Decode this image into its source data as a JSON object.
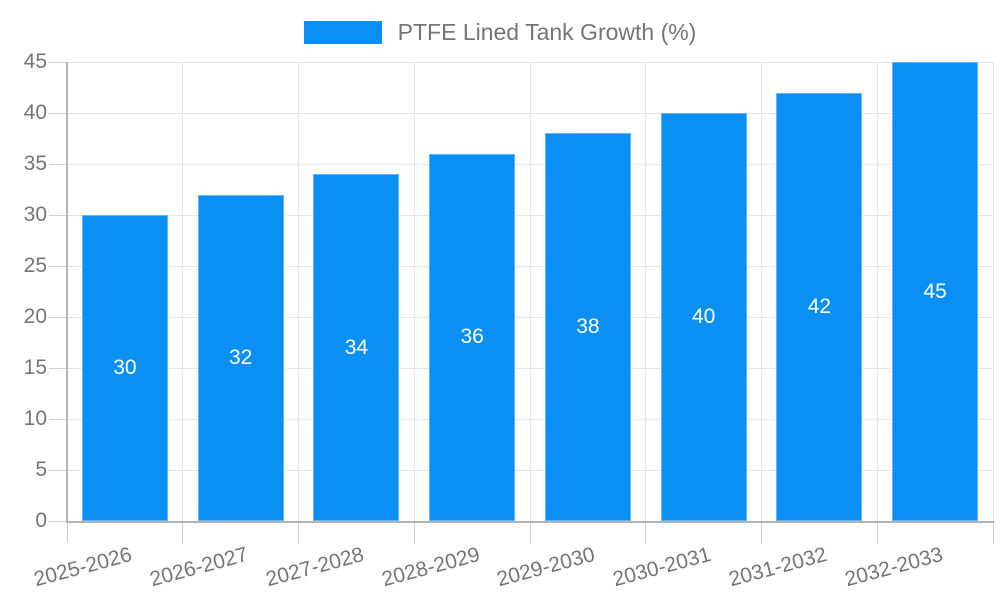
{
  "chart_data": {
    "type": "bar",
    "title": "PTFE Lined Tank Growth (%)",
    "categories": [
      "2025-2026",
      "2026-2027",
      "2027-2028",
      "2028-2029",
      "2029-2030",
      "2030-2031",
      "2031-2032",
      "2032-2033"
    ],
    "values": [
      30,
      32,
      34,
      36,
      38,
      40,
      42,
      45
    ],
    "xlabel": "",
    "ylabel": "",
    "ylim": [
      0,
      45
    ],
    "yticks": [
      0,
      5,
      10,
      15,
      20,
      25,
      30,
      35,
      40,
      45
    ],
    "grid": true,
    "legend_position": "top",
    "bar_labels_shown_inside_bars": true,
    "colors": {
      "bar": "#0a90f5",
      "bar_label": "#ffffff",
      "axis_text": "#757575",
      "gridline": "#e6e6e6",
      "tick": "#cfcfcf",
      "axis_line": "#b3b3b3"
    }
  }
}
